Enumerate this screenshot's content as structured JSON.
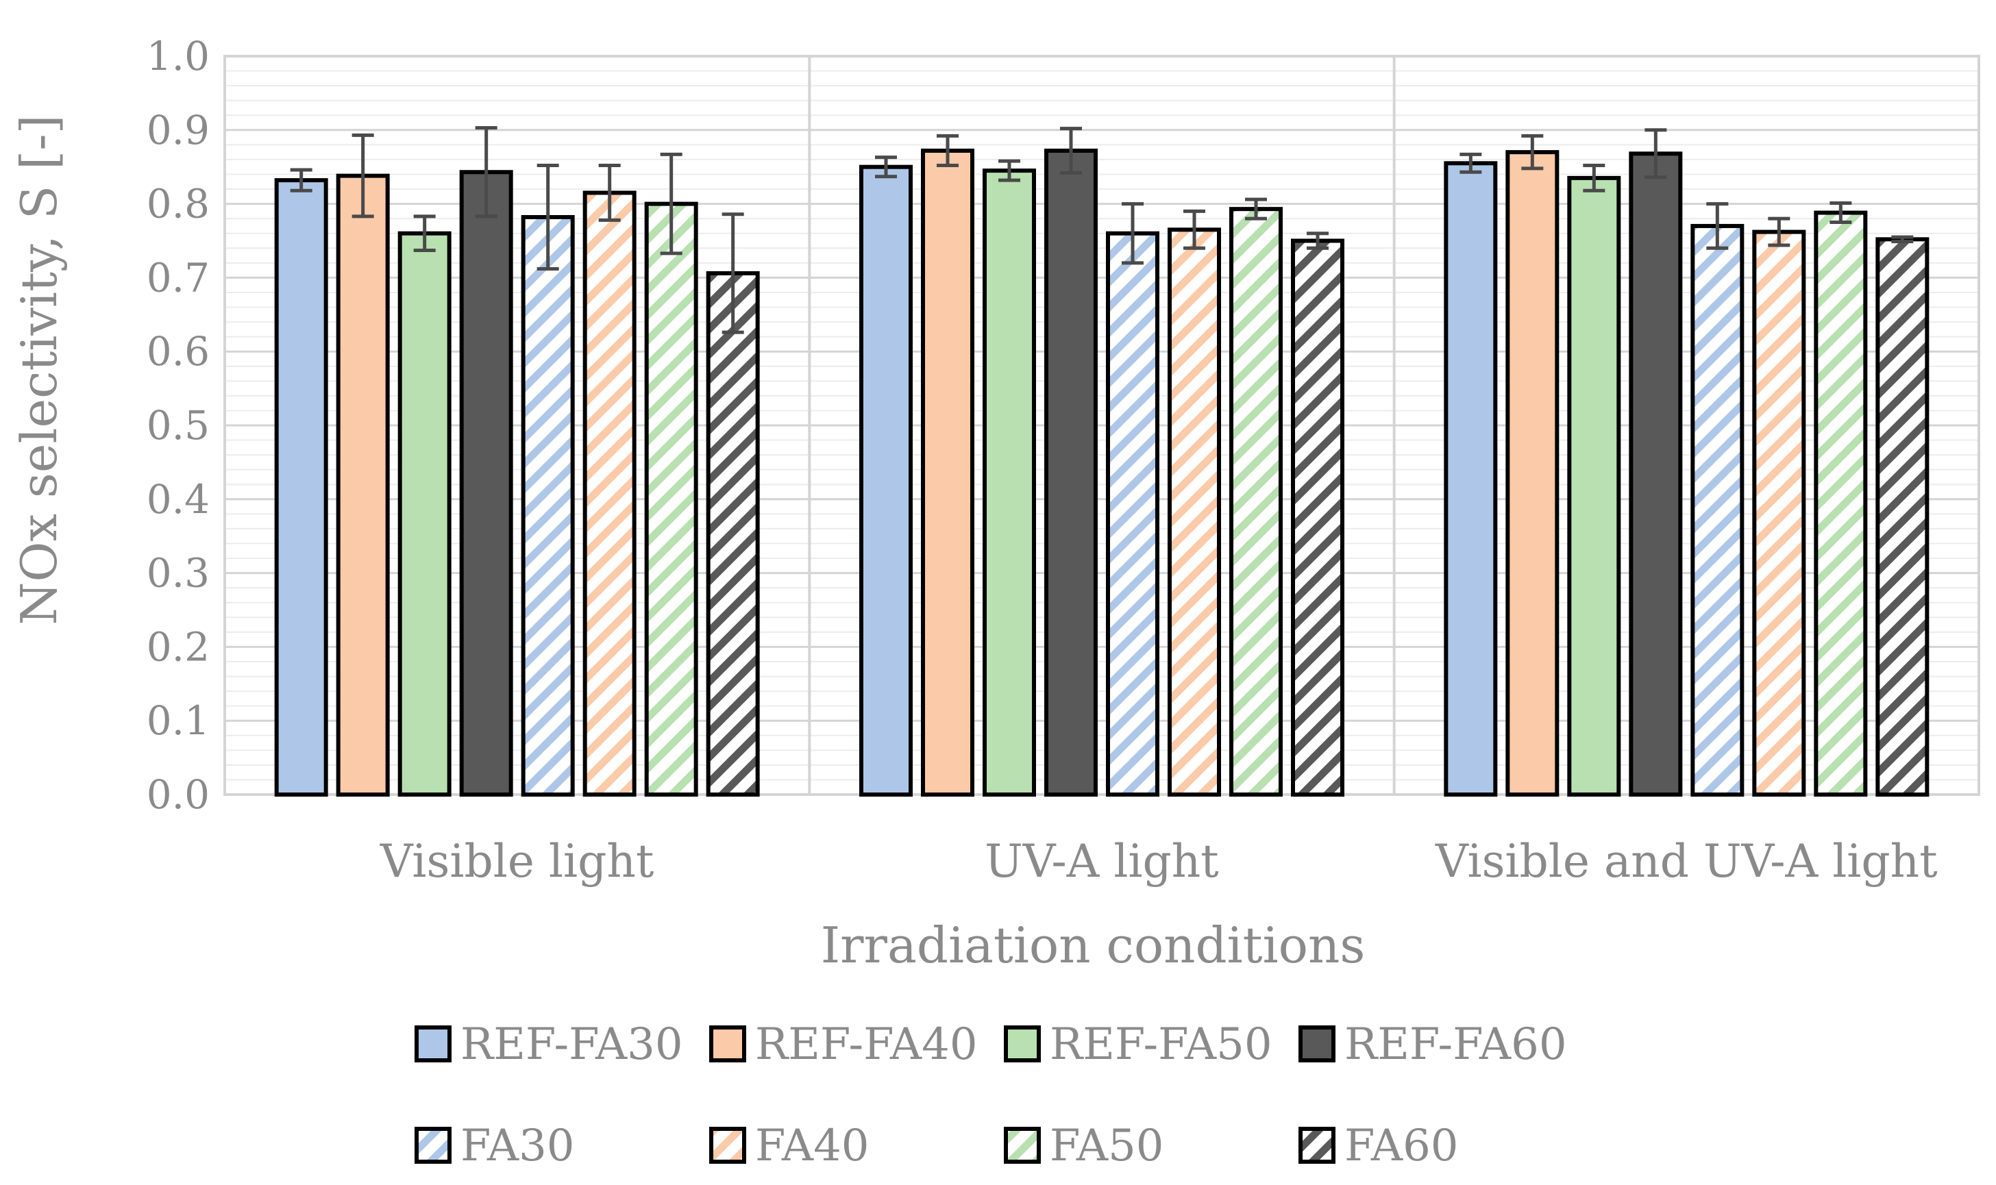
{
  "chart_data": {
    "type": "bar",
    "xlabel": "Irradiation conditions",
    "ylabel": "NOx selectivity, S [-]",
    "ylim": [
      0,
      1.0
    ],
    "yticks": [
      "0.0",
      "0.1",
      "0.2",
      "0.3",
      "0.4",
      "0.5",
      "0.6",
      "0.7",
      "0.8",
      "0.9",
      "1.0"
    ],
    "grid": true,
    "legend_position": "bottom",
    "categories": [
      "Visible light",
      "UV-A light",
      "Visible and UV-A light"
    ],
    "series": [
      {
        "name": "REF-FA30",
        "color": "#aec7e8",
        "hatched": false,
        "values": [
          0.832,
          0.85,
          0.855
        ],
        "errors": [
          0.014,
          0.013,
          0.012
        ]
      },
      {
        "name": "REF-FA40",
        "color": "#fbcaa8",
        "hatched": false,
        "values": [
          0.838,
          0.872,
          0.87
        ],
        "errors": [
          0.055,
          0.02,
          0.022
        ]
      },
      {
        "name": "REF-FA50",
        "color": "#b8e0b0",
        "hatched": false,
        "values": [
          0.76,
          0.845,
          0.835
        ],
        "errors": [
          0.023,
          0.013,
          0.017
        ]
      },
      {
        "name": "REF-FA60",
        "color": "#595959",
        "hatched": false,
        "values": [
          0.843,
          0.872,
          0.868
        ],
        "errors": [
          0.06,
          0.03,
          0.032
        ]
      },
      {
        "name": "FA30",
        "color": "#aec7e8",
        "hatched": true,
        "values": [
          0.782,
          0.76,
          0.77
        ],
        "errors": [
          0.07,
          0.04,
          0.03
        ]
      },
      {
        "name": "FA40",
        "color": "#fbcaa8",
        "hatched": true,
        "values": [
          0.815,
          0.765,
          0.762
        ],
        "errors": [
          0.037,
          0.025,
          0.018
        ]
      },
      {
        "name": "FA50",
        "color": "#b8e0b0",
        "hatched": true,
        "values": [
          0.8,
          0.793,
          0.788
        ],
        "errors": [
          0.067,
          0.013,
          0.013
        ]
      },
      {
        "name": "FA60",
        "color": "#595959",
        "hatched": true,
        "values": [
          0.706,
          0.75,
          0.752
        ],
        "errors": [
          0.08,
          0.01,
          0.003
        ]
      }
    ]
  }
}
